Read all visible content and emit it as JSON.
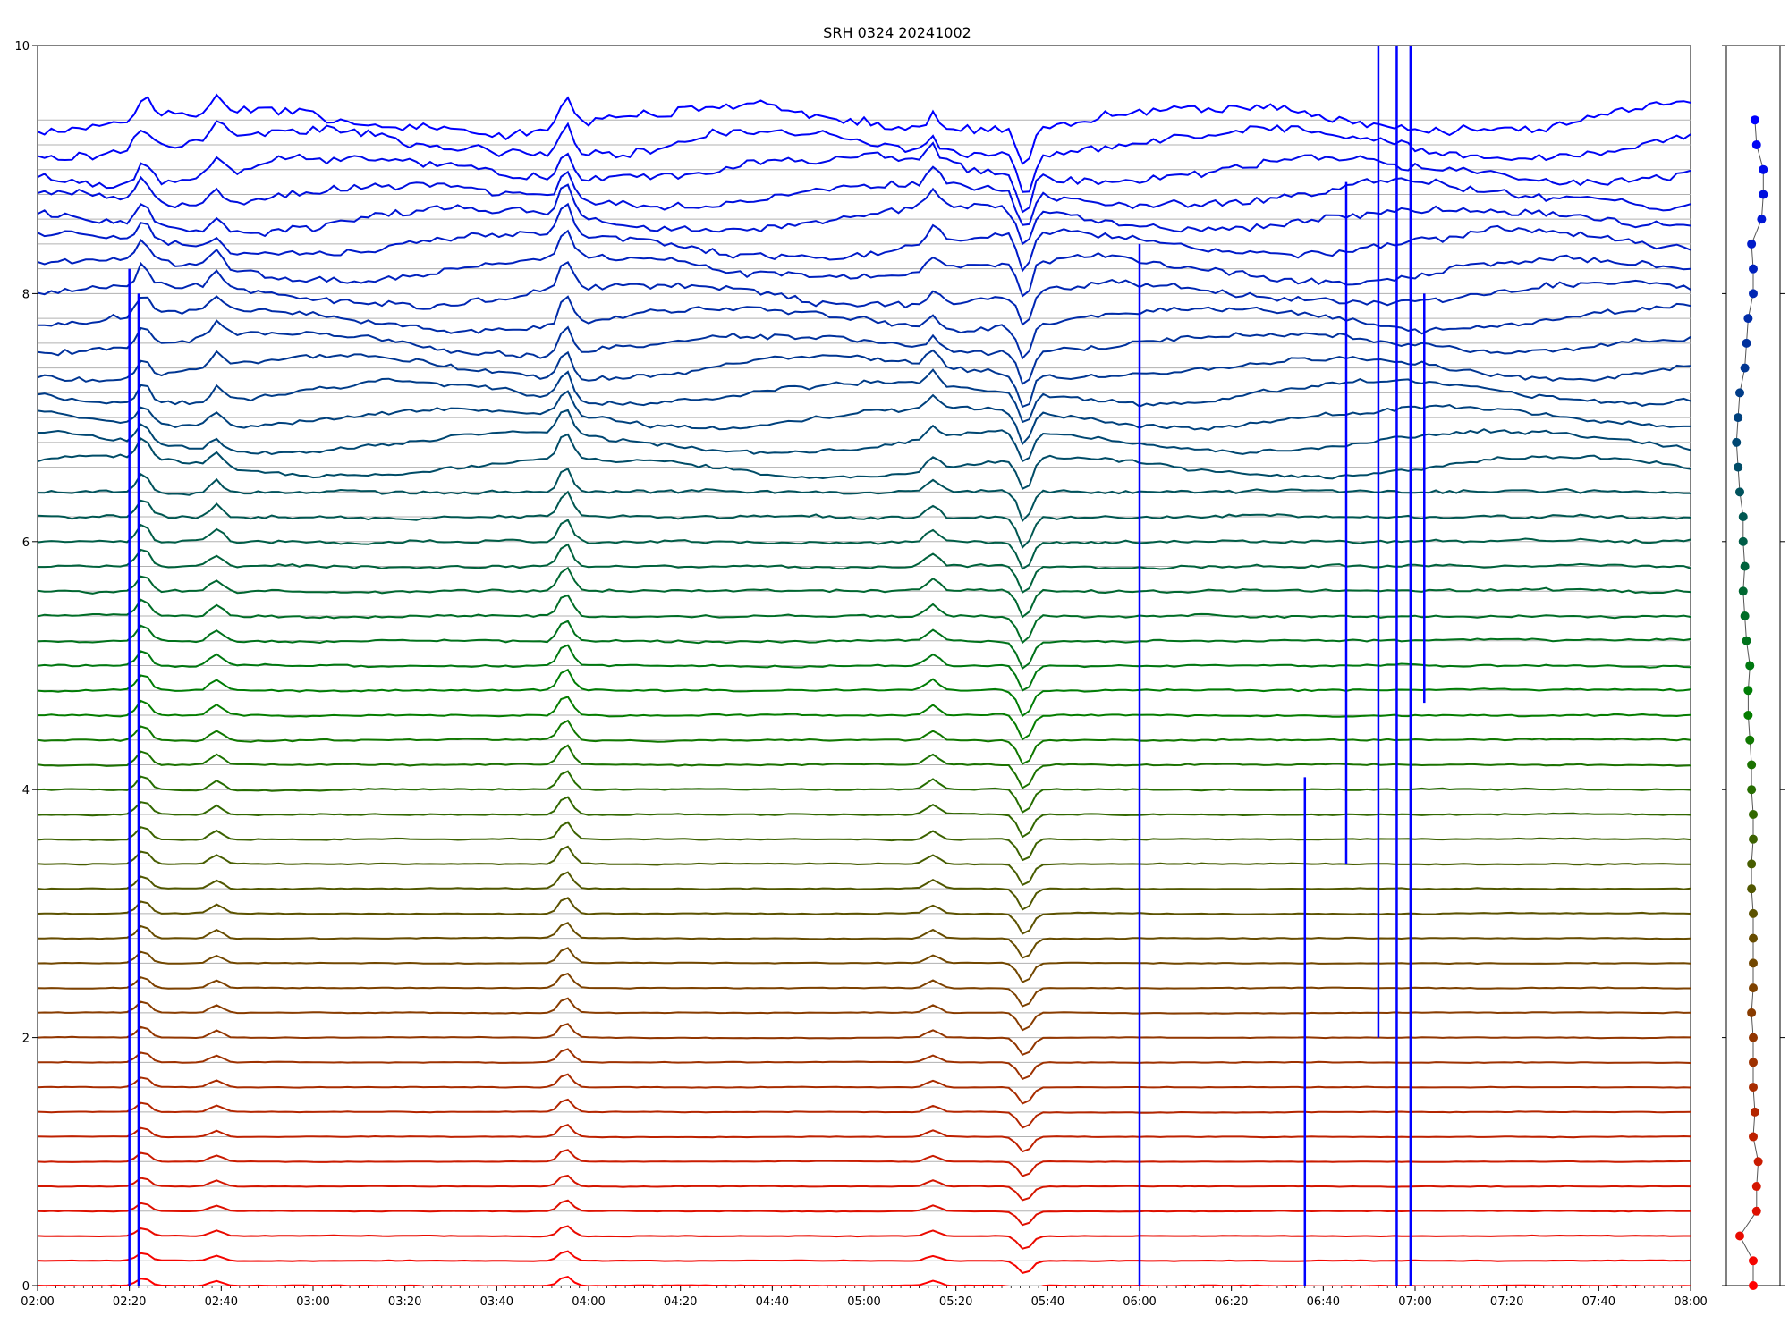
{
  "chart_data": [
    {
      "type": "line",
      "title": "SRH 0324 20241002",
      "xlabel": "",
      "ylabel": "",
      "xlim": [
        "02:00",
        "08:00"
      ],
      "ylim": [
        0,
        10
      ],
      "grid": "horizontal",
      "x_ticks": [
        "02:00",
        "02:20",
        "02:40",
        "03:00",
        "03:20",
        "03:40",
        "04:00",
        "04:20",
        "04:40",
        "05:00",
        "05:20",
        "05:40",
        "06:00",
        "06:20",
        "06:40",
        "07:00",
        "07:20",
        "07:40",
        "08:00"
      ],
      "y_ticks": [
        0,
        2,
        4,
        6,
        8,
        10
      ],
      "trace_count": 48,
      "trace_spacing": 0.2,
      "trace_color_start": "#ff0000",
      "trace_color_middle": "#008000",
      "trace_color_end": "#0000ff",
      "common_events": [
        {
          "time": "02:23",
          "amplitude": 0.06
        },
        {
          "time": "02:39",
          "amplitude": 0.04
        },
        {
          "time": "03:55",
          "amplitude": 0.08
        },
        {
          "time": "05:15",
          "amplitude": 0.04
        },
        {
          "time": "05:35",
          "amplitude": -0.1
        }
      ],
      "spikes": [
        {
          "time": "02:20",
          "low": -0.3,
          "high": 8.2
        },
        {
          "time": "02:22",
          "low": -0.3,
          "high": 8.0
        },
        {
          "time": "06:00",
          "low": -0.3,
          "high": 8.4
        },
        {
          "time": "06:36",
          "low": -0.2,
          "high": 4.1
        },
        {
          "time": "06:45",
          "low": 3.4,
          "high": 8.9
        },
        {
          "time": "06:52",
          "low": 2.0,
          "high": 10.0
        },
        {
          "time": "06:56",
          "low": 0.0,
          "high": 10.0
        },
        {
          "time": "06:59",
          "low": 0.0,
          "high": 10.0
        },
        {
          "time": "07:02",
          "low": 4.7,
          "high": 8.0
        }
      ]
    },
    {
      "type": "scatter",
      "y_values": [
        0,
        0.2,
        0.4,
        0.6,
        0.8,
        1.0,
        1.2,
        1.4,
        1.6,
        1.8,
        2.0,
        2.2,
        2.4,
        2.6,
        2.8,
        3.0,
        3.2,
        3.4,
        3.6,
        3.8,
        4.0,
        4.2,
        4.4,
        4.6,
        4.8,
        5.0,
        5.2,
        5.4,
        5.6,
        5.8,
        6.0,
        6.2,
        6.4,
        6.6,
        6.8,
        7.0,
        7.2,
        7.4,
        7.6,
        7.8,
        8.0,
        8.2,
        8.4,
        8.6,
        8.8,
        9.0,
        9.2,
        9.4
      ],
      "x_values": [
        0.0,
        0.0,
        -0.8,
        0.2,
        0.2,
        0.3,
        0.0,
        0.1,
        0.0,
        0.0,
        0.0,
        -0.1,
        0.0,
        0.0,
        0.0,
        0.0,
        -0.1,
        -0.1,
        0.0,
        0.0,
        -0.1,
        -0.1,
        -0.2,
        -0.3,
        -0.3,
        -0.2,
        -0.4,
        -0.5,
        -0.6,
        -0.5,
        -0.6,
        -0.6,
        -0.8,
        -0.9,
        -1.0,
        -0.9,
        -0.8,
        -0.5,
        -0.4,
        -0.3,
        0.0,
        0.0,
        -0.1,
        0.5,
        0.6,
        0.6,
        0.2,
        0.1
      ],
      "xlim": [
        -1.6,
        1.6
      ],
      "ylim": [
        0,
        10
      ]
    }
  ]
}
